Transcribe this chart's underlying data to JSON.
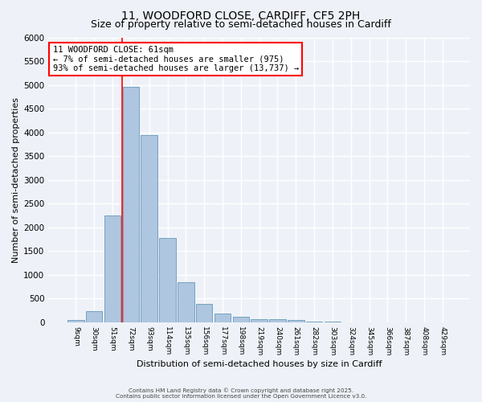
{
  "title": "11, WOODFORD CLOSE, CARDIFF, CF5 2PH",
  "subtitle": "Size of property relative to semi-detached houses in Cardiff",
  "xlabel": "Distribution of semi-detached houses by size in Cardiff",
  "ylabel": "Number of semi-detached properties",
  "bar_labels": [
    "9sqm",
    "30sqm",
    "51sqm",
    "72sqm",
    "93sqm",
    "114sqm",
    "135sqm",
    "156sqm",
    "177sqm",
    "198sqm",
    "219sqm",
    "240sqm",
    "261sqm",
    "282sqm",
    "303sqm",
    "324sqm",
    "345sqm",
    "366sqm",
    "387sqm",
    "408sqm",
    "429sqm"
  ],
  "bar_values": [
    40,
    240,
    2250,
    4950,
    3950,
    1780,
    850,
    390,
    180,
    110,
    60,
    55,
    40,
    15,
    5,
    3,
    2,
    1,
    0,
    0,
    0
  ],
  "bar_color": "#aec6df",
  "bar_edge_color": "#6699bb",
  "ylim": [
    0,
    6000
  ],
  "yticks": [
    0,
    500,
    1000,
    1500,
    2000,
    2500,
    3000,
    3500,
    4000,
    4500,
    5000,
    5500,
    6000
  ],
  "red_line_x": 2.52,
  "annotation_text": "11 WOODFORD CLOSE: 61sqm\n← 7% of semi-detached houses are smaller (975)\n93% of semi-detached houses are larger (13,737) →",
  "footer_line1": "Contains HM Land Registry data © Crown copyright and database right 2025.",
  "footer_line2": "Contains public sector information licensed under the Open Government Licence v3.0.",
  "background_color": "#eef2f8",
  "grid_color": "#ffffff",
  "title_fontsize": 10,
  "subtitle_fontsize": 9,
  "ylabel_fontsize": 8,
  "xlabel_fontsize": 8
}
